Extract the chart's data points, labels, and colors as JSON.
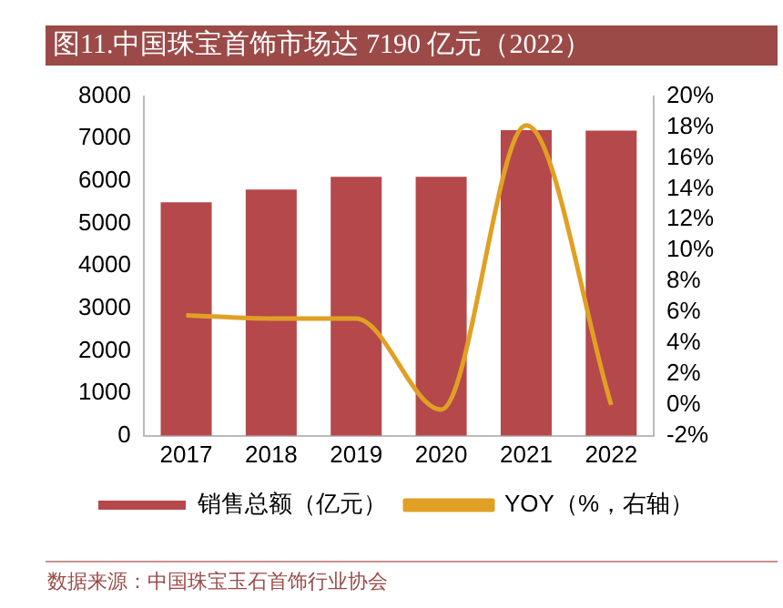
{
  "chart_data": {
    "type": "bar",
    "title": "图11.中国珠宝首饰市场达 7190 亿元（2022）",
    "categories": [
      "2017",
      "2018",
      "2019",
      "2020",
      "2021",
      "2022"
    ],
    "series": [
      {
        "name": "销售总额（亿元）",
        "color": "#b5484a",
        "values": [
          5500,
          5800,
          6100,
          6100,
          7200,
          7190
        ]
      },
      {
        "name": "YOY（%，右轴）",
        "type": "line",
        "axis": "y2",
        "color": "#e0a024",
        "values": [
          5.8,
          5.6,
          5.6,
          -0.3,
          18.1,
          0
        ]
      }
    ],
    "ylim": [
      0,
      8000
    ],
    "yticks": [
      0,
      1000,
      2000,
      3000,
      4000,
      5000,
      6000,
      7000,
      8000
    ],
    "y2lim": [
      -2,
      20
    ],
    "y2ticks": [
      {
        "value": -2,
        "label": "-2%"
      },
      {
        "value": 0,
        "label": "0%"
      },
      {
        "value": 2,
        "label": "2%"
      },
      {
        "value": 4,
        "label": "4%"
      },
      {
        "value": 6,
        "label": "6%"
      },
      {
        "value": 8,
        "label": "8%"
      },
      {
        "value": 10,
        "label": "10%"
      },
      {
        "value": 12,
        "label": "12%"
      },
      {
        "value": 14,
        "label": "14%"
      },
      {
        "value": 16,
        "label": "16%"
      },
      {
        "value": 18,
        "label": "18%"
      },
      {
        "value": 20,
        "label": "20%"
      }
    ],
    "grid": false,
    "legend": "bottom",
    "marker": "none",
    "annotations": [
      "数据来源：中国珠宝玉石首饰行业协会"
    ]
  }
}
